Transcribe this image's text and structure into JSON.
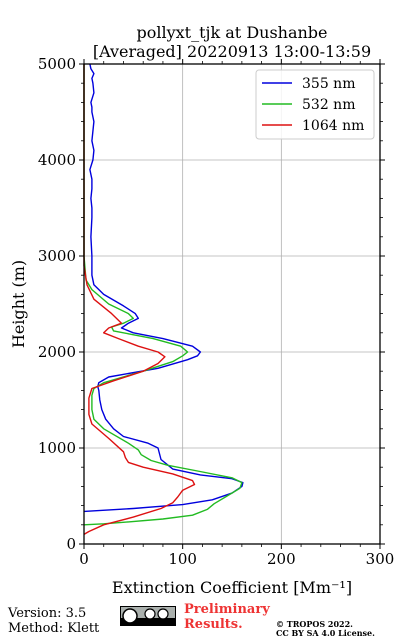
{
  "chart_data": {
    "type": "line",
    "title": "pollyxt_tjk at Dushanbe",
    "subtitle": "[Averaged] 20220913 13:00-13:59",
    "xlabel": "Extinction Coefficient [Mm⁻¹]",
    "ylabel": "Height (m)",
    "xlim": [
      0,
      300
    ],
    "ylim": [
      0,
      5000
    ],
    "x_ticks": [
      "0",
      "100",
      "200",
      "300"
    ],
    "y_ticks": [
      "0",
      "1000",
      "2000",
      "3000",
      "4000",
      "5000"
    ],
    "grid": true,
    "legend_position": "top-right",
    "series": [
      {
        "name": "355 nm",
        "color": "#0000dd",
        "x": [
          0,
          50,
          100,
          130,
          150,
          160,
          161,
          150,
          118,
          90,
          78,
          75,
          65,
          40,
          30,
          22,
          18,
          16,
          15,
          14,
          15,
          25,
          75,
          105,
          115,
          118,
          110,
          80,
          50,
          38,
          45,
          55,
          52,
          40,
          20,
          10,
          8,
          8,
          7,
          8,
          8,
          7,
          8,
          8,
          6,
          9,
          10,
          8,
          9,
          10,
          8,
          8,
          7,
          10,
          9,
          8,
          10,
          7,
          6
        ],
        "y": [
          340,
          370,
          410,
          460,
          530,
          600,
          640,
          680,
          720,
          780,
          880,
          1000,
          1050,
          1120,
          1200,
          1300,
          1400,
          1500,
          1600,
          1640,
          1680,
          1740,
          1830,
          1920,
          1960,
          2000,
          2060,
          2140,
          2200,
          2250,
          2300,
          2350,
          2400,
          2480,
          2600,
          2700,
          2800,
          3000,
          3200,
          3400,
          3500,
          3600,
          3700,
          3800,
          3900,
          4000,
          4100,
          4200,
          4300,
          4400,
          4500,
          4550,
          4600,
          4700,
          4800,
          4850,
          4900,
          4950,
          5000
        ]
      },
      {
        "name": "532 nm",
        "color": "#22bb22",
        "x": [
          0,
          20,
          45,
          80,
          110,
          125,
          132,
          145,
          158,
          160,
          150,
          115,
          85,
          68,
          58,
          55,
          45,
          20,
          10,
          8,
          8,
          10,
          20,
          60,
          90,
          100,
          105,
          98,
          70,
          45,
          30,
          28,
          40,
          50,
          45,
          25,
          8,
          2,
          0,
          0,
          0,
          0
        ],
        "y": [
          200,
          210,
          230,
          260,
          300,
          360,
          420,
          500,
          580,
          640,
          690,
          760,
          820,
          870,
          930,
          980,
          1050,
          1200,
          1300,
          1400,
          1550,
          1620,
          1680,
          1800,
          1900,
          1960,
          2000,
          2060,
          2140,
          2190,
          2220,
          2260,
          2300,
          2350,
          2400,
          2500,
          2650,
          2750,
          3000,
          3500,
          4500,
          5000
        ]
      },
      {
        "name": "1064 nm",
        "color": "#dd1111",
        "x": [
          0,
          5,
          20,
          50,
          78,
          90,
          95,
          100,
          112,
          110,
          90,
          60,
          45,
          42,
          40,
          25,
          8,
          5,
          5,
          8,
          30,
          60,
          75,
          82,
          75,
          55,
          35,
          20,
          25,
          38,
          28,
          10,
          3,
          0,
          0,
          0
        ],
        "y": [
          100,
          130,
          200,
          280,
          370,
          430,
          490,
          560,
          620,
          660,
          730,
          800,
          850,
          900,
          960,
          1100,
          1250,
          1350,
          1520,
          1620,
          1700,
          1800,
          1880,
          1950,
          2000,
          2060,
          2140,
          2200,
          2250,
          2300,
          2400,
          2550,
          2700,
          2900,
          4000,
          5000
        ]
      }
    ]
  },
  "footer": {
    "version_line": "Version: 3.5",
    "method_line": "Method: Klett",
    "preliminary_line1": "Preliminary",
    "preliminary_line2": "Results.",
    "copyright_line1": "© TROPOS 2022.",
    "copyright_line2": "CC BY SA 4.0 License."
  }
}
